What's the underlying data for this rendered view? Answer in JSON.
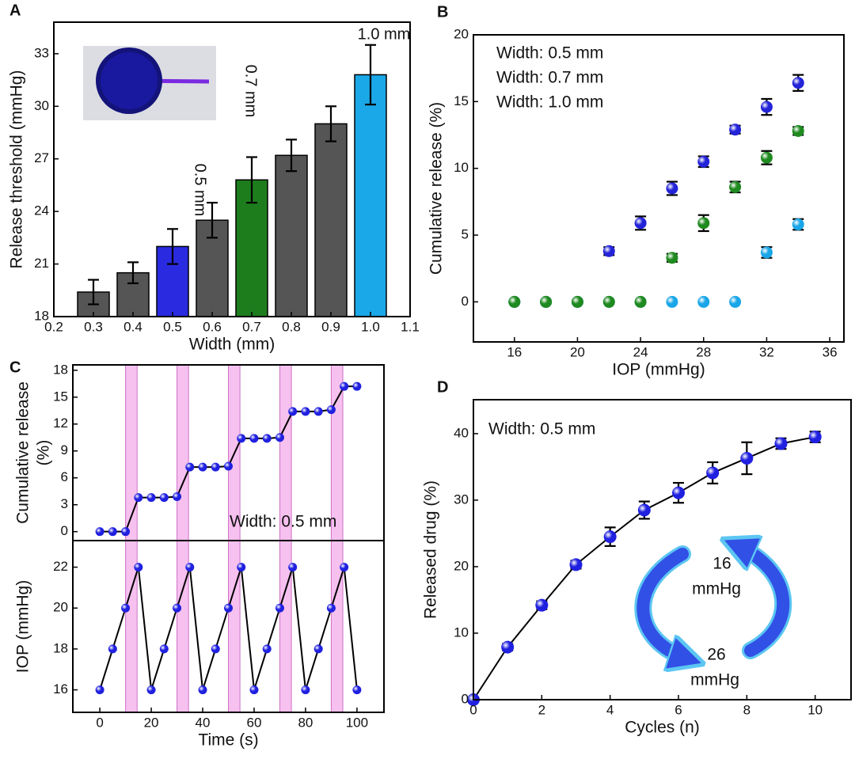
{
  "chart_data": [
    {
      "type": "bar",
      "panel_label": "A",
      "xlabel": "Width (mm)",
      "ylabel": "Release threshold (mmHg)",
      "x": [
        0.3,
        0.4,
        0.5,
        0.6,
        0.7,
        0.8,
        0.9,
        1.0
      ],
      "values": [
        19.4,
        20.5,
        22.0,
        23.5,
        25.8,
        27.2,
        29.0,
        31.8
      ],
      "errors": [
        0.7,
        0.6,
        1.0,
        1.0,
        1.3,
        0.9,
        1.0,
        1.7
      ],
      "colors": [
        "#555555",
        "#555555",
        "#2a2ae0",
        "#555555",
        "#1d7d1d",
        "#555555",
        "#555555",
        "#1aa8e8"
      ],
      "xlim": [
        0.2,
        1.1
      ],
      "ylim": [
        18,
        34.8
      ],
      "xticks": [
        0.2,
        0.3,
        0.4,
        0.5,
        0.6,
        0.7,
        0.8,
        0.9,
        {
          "value": 1,
          "label": "1.0"
        },
        1.1
      ],
      "yticks": [
        18,
        21,
        24,
        27,
        30,
        33
      ],
      "annotations": [
        {
          "text": "0.5 mm",
          "color": "#2a2ae0"
        },
        {
          "text": "0.7 mm",
          "color": "#1d7d1d"
        },
        {
          "text": "1.0 mm",
          "color": "#1aa8e8"
        }
      ]
    },
    {
      "type": "scatter",
      "panel_label": "B",
      "xlabel": "IOP (mmHg)",
      "ylabel": "Cumulative release (%)",
      "x": [
        16,
        18,
        20,
        22,
        24,
        26,
        28,
        30,
        32,
        34
      ],
      "series": [
        {
          "name": "Width: 0.5 mm",
          "color": "#2323d8",
          "values": [
            0,
            0,
            0,
            3.8,
            5.9,
            8.5,
            10.5,
            12.9,
            14.6,
            16.4
          ],
          "errors": [
            0,
            0,
            0,
            0.3,
            0.5,
            0.5,
            0.4,
            0.3,
            0.6,
            0.6
          ]
        },
        {
          "name": "Width: 0.7 mm",
          "color": "#1f8a1f",
          "values": [
            0,
            0,
            0,
            0,
            0,
            3.3,
            5.9,
            8.6,
            10.8,
            12.8
          ],
          "errors": [
            0,
            0,
            0,
            0,
            0,
            0.3,
            0.6,
            0.4,
            0.5,
            0.3
          ]
        },
        {
          "name": "Width: 1.0 mm",
          "color": "#19a6e8",
          "values": [
            0,
            0,
            0,
            0,
            0,
            0,
            0,
            0,
            3.7,
            5.8
          ],
          "errors": [
            0,
            0,
            0,
            0,
            0,
            0,
            0,
            0,
            0.4,
            0.4
          ]
        }
      ],
      "xlim": [
        13.4,
        36.9
      ],
      "ylim": [
        -3,
        20
      ],
      "xticks": [
        16,
        20,
        24,
        28,
        32,
        36
      ],
      "yticks": [
        0,
        5,
        10,
        15,
        20
      ]
    },
    {
      "type": "line",
      "panel_label": "C",
      "ylabel_lines": [
        "Cumulative release",
        "(%)"
      ],
      "annotation": "Width: 0.5 mm",
      "x": [
        0,
        5,
        10,
        15,
        20,
        25,
        30,
        35,
        40,
        45,
        50,
        55,
        60,
        65,
        70,
        75,
        80,
        85,
        90,
        95,
        100
      ],
      "values": [
        0,
        0,
        0,
        3.8,
        3.8,
        3.8,
        3.9,
        7.2,
        7.2,
        7.2,
        7.3,
        10.4,
        10.4,
        10.4,
        10.5,
        13.4,
        13.4,
        13.4,
        13.6,
        16.2,
        16.2
      ],
      "color": "#2020e0",
      "xlim": [
        -10.5,
        110.5
      ],
      "ylim": [
        -1,
        18.6
      ],
      "yticks": [
        0,
        3,
        6,
        9,
        12,
        15,
        18
      ],
      "highlight_spans": [
        [
          10,
          14.5
        ],
        [
          30,
          34.5
        ],
        [
          50,
          54.5
        ],
        [
          70,
          74.5
        ],
        [
          90,
          94.5
        ]
      ],
      "highlight_color": "#f6c0ef"
    },
    {
      "type": "line",
      "xlabel": "Time (s)",
      "ylabel": "IOP (mmHg)",
      "x": [
        0,
        5,
        10,
        15,
        20,
        25,
        30,
        35,
        40,
        45,
        50,
        55,
        60,
        65,
        70,
        75,
        80,
        85,
        90,
        95,
        100
      ],
      "values": [
        16,
        18,
        20,
        22,
        16,
        18,
        20,
        22,
        16,
        18,
        20,
        22,
        16,
        18,
        20,
        22,
        16,
        18,
        20,
        22,
        16
      ],
      "color": "#2020e0",
      "xlim": [
        -10.5,
        110.5
      ],
      "ylim": [
        14.9,
        23.3
      ],
      "xticks": [
        0,
        20,
        40,
        60,
        80,
        100
      ],
      "yticks": [
        16,
        18,
        20,
        22
      ]
    },
    {
      "type": "line",
      "panel_label": "D",
      "xlabel": "Cycles (n)",
      "ylabel": "Released drug (%)",
      "x": [
        0,
        1,
        2,
        3,
        4,
        5,
        6,
        7,
        8,
        9,
        10
      ],
      "values": [
        0,
        7.9,
        14.2,
        20.3,
        24.5,
        28.5,
        31.1,
        34.1,
        36.3,
        38.5,
        39.5
      ],
      "errors": [
        0,
        0.5,
        0.6,
        0.6,
        1.4,
        1.3,
        1.5,
        1.6,
        2.4,
        0.8,
        0.8
      ],
      "color": "#2020e0",
      "xlim": [
        0,
        11.05
      ],
      "ylim": [
        0,
        45.1
      ],
      "xticks": [
        0,
        2,
        4,
        6,
        8,
        10
      ],
      "yticks": [
        0,
        10,
        20,
        30,
        40
      ],
      "annotations": [
        {
          "text": "Width: 0.5 mm"
        },
        {
          "text": "16"
        },
        {
          "text": "mmHg"
        },
        {
          "text": "26"
        },
        {
          "text": "mmHg"
        }
      ]
    }
  ]
}
